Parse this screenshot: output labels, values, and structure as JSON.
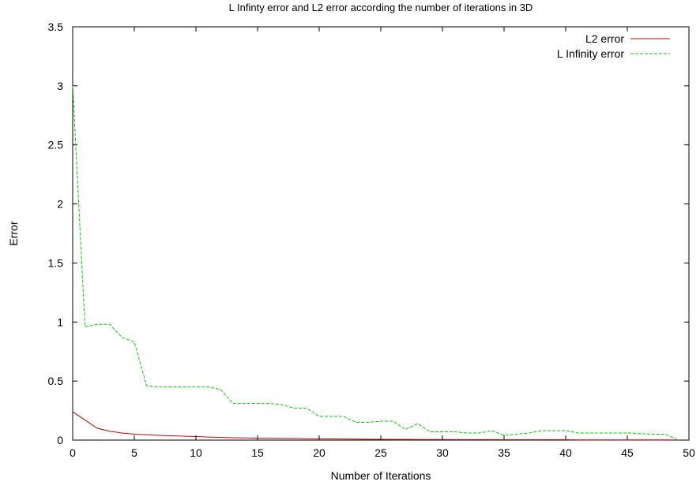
{
  "chart_data": {
    "type": "line",
    "title": "L Infinty error and L2 error according the number of iterations in 3D",
    "xlabel": "Number of Iterations",
    "ylabel": "Error",
    "xlim": [
      0,
      50
    ],
    "ylim": [
      0,
      3.5
    ],
    "xticks": [
      "0",
      "5",
      "10",
      "15",
      "20",
      "25",
      "30",
      "35",
      "40",
      "45",
      "50"
    ],
    "yticks": [
      "0",
      "0.5",
      "1",
      "1.5",
      "2",
      "2.5",
      "3",
      "3.5"
    ],
    "grid": false,
    "legend_position": "top-right",
    "series": [
      {
        "name": "L2 error",
        "color": "#cc0000",
        "dash": "solid",
        "x": [
          0,
          1,
          2,
          3,
          4,
          5,
          6,
          7,
          8,
          9,
          10,
          11,
          12,
          13,
          14,
          15,
          16,
          17,
          18,
          19,
          20,
          21,
          22,
          23,
          24,
          25,
          26,
          27,
          28,
          29,
          30,
          31,
          32,
          33,
          34,
          35,
          36,
          37,
          38,
          39,
          40,
          41,
          42,
          43,
          44,
          45,
          46,
          47,
          48,
          49
        ],
        "y": [
          0.24,
          0.17,
          0.1,
          0.075,
          0.06,
          0.05,
          0.045,
          0.04,
          0.037,
          0.033,
          0.03,
          0.026,
          0.023,
          0.02,
          0.018,
          0.016,
          0.015,
          0.014,
          0.013,
          0.012,
          0.011,
          0.01,
          0.009,
          0.008,
          0.007,
          0.007,
          0.006,
          0.006,
          0.005,
          0.005,
          0.005,
          0.004,
          0.004,
          0.004,
          0.004,
          0.003,
          0.003,
          0.003,
          0.003,
          0.003,
          0.003,
          0.002,
          0.002,
          0.002,
          0.002,
          0.002,
          0.002,
          0.002,
          0.002,
          0.002
        ]
      },
      {
        "name": "L Infinity error",
        "color": "#00cc00",
        "dash": "dashed",
        "x": [
          0,
          1,
          2,
          3,
          4,
          5,
          6,
          7,
          8,
          9,
          10,
          11,
          12,
          13,
          14,
          15,
          16,
          17,
          18,
          19,
          20,
          21,
          22,
          23,
          24,
          25,
          26,
          27,
          28,
          29,
          30,
          31,
          32,
          33,
          34,
          35,
          36,
          37,
          38,
          39,
          40,
          41,
          42,
          43,
          44,
          45,
          46,
          47,
          48,
          49
        ],
        "y": [
          3.0,
          0.96,
          0.98,
          0.98,
          0.87,
          0.83,
          0.46,
          0.45,
          0.45,
          0.45,
          0.45,
          0.45,
          0.43,
          0.31,
          0.31,
          0.31,
          0.31,
          0.3,
          0.27,
          0.27,
          0.2,
          0.2,
          0.2,
          0.15,
          0.15,
          0.16,
          0.16,
          0.09,
          0.14,
          0.07,
          0.07,
          0.07,
          0.06,
          0.06,
          0.08,
          0.04,
          0.05,
          0.06,
          0.08,
          0.08,
          0.08,
          0.06,
          0.06,
          0.06,
          0.06,
          0.06,
          0.055,
          0.05,
          0.05,
          0.01
        ]
      }
    ]
  }
}
